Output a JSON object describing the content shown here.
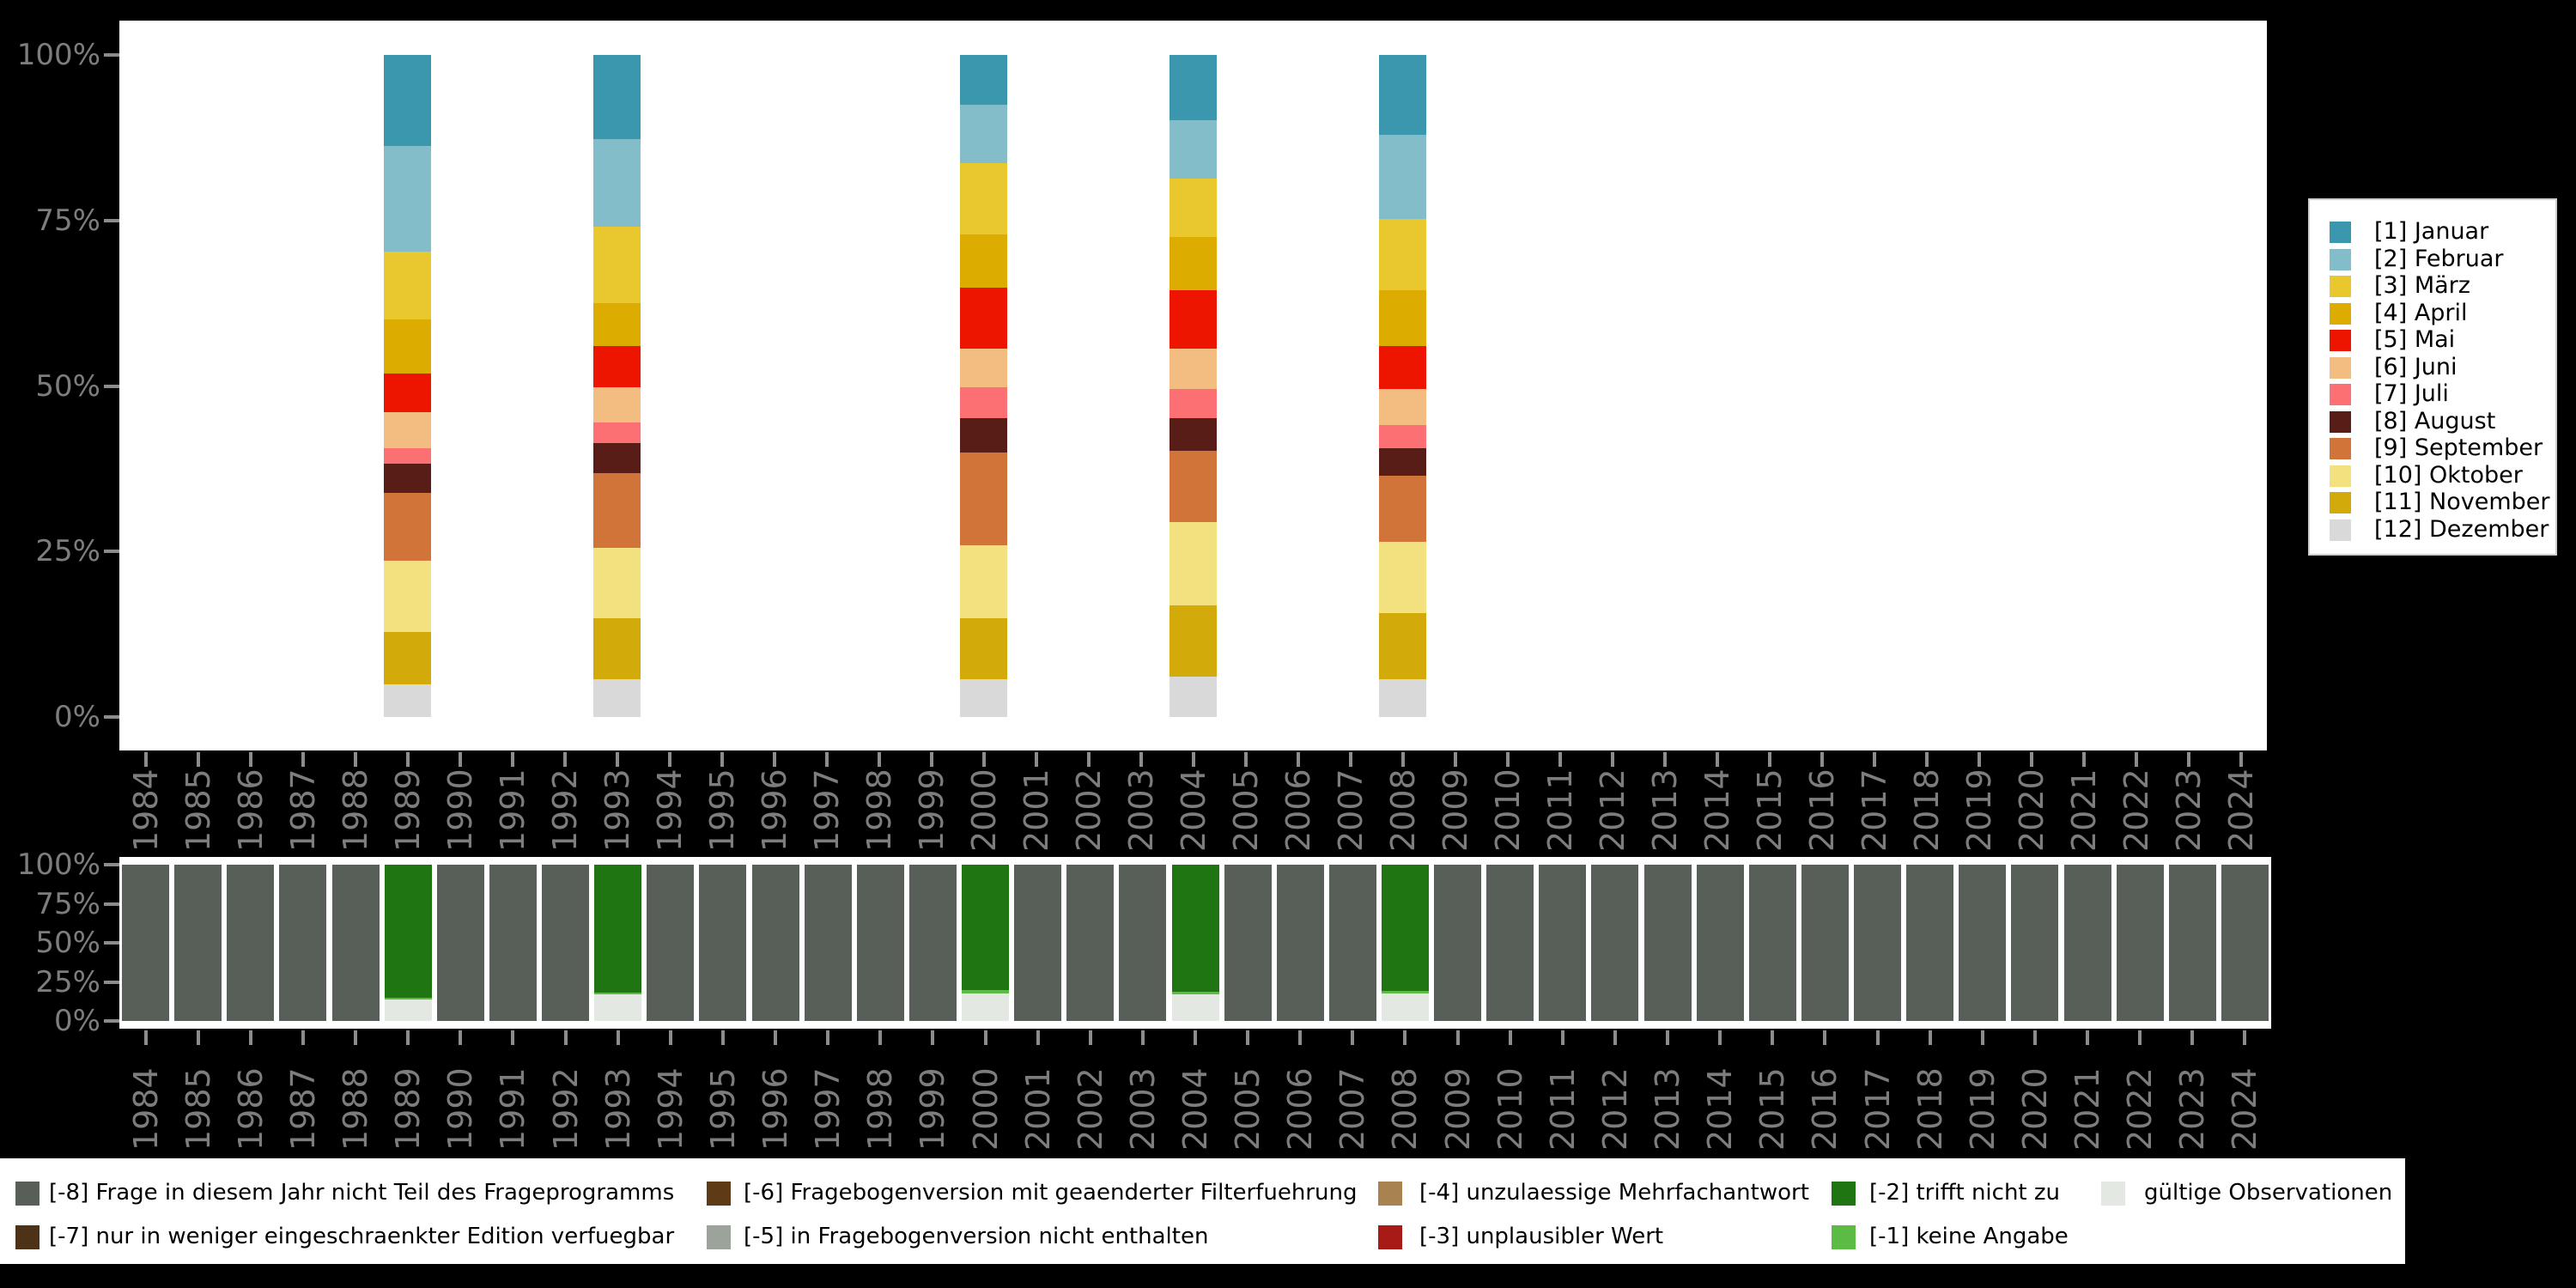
{
  "background_color": "#000000",
  "axis_text_color": "#7d7d7d",
  "tick_color": "#8c8c8c",
  "axes": {
    "y_tick_labels": [
      "100%",
      "75%",
      "50%",
      "25%",
      "0%"
    ],
    "years": [
      "1984",
      "1985",
      "1986",
      "1987",
      "1988",
      "1989",
      "1990",
      "1991",
      "1992",
      "1993",
      "1994",
      "1995",
      "1996",
      "1997",
      "1998",
      "1999",
      "2000",
      "2001",
      "2002",
      "2003",
      "2004",
      "2005",
      "2006",
      "2007",
      "2008",
      "2009",
      "2010",
      "2011",
      "2012",
      "2013",
      "2014",
      "2015",
      "2016",
      "2017",
      "2018",
      "2019",
      "2020",
      "2021",
      "2022",
      "2023",
      "2024"
    ]
  },
  "month_legend": {
    "items": [
      {
        "label": "[1] Januar",
        "color": "#3a97ae"
      },
      {
        "label": "[2] Februar",
        "color": "#82bdc9"
      },
      {
        "label": "[3] März",
        "color": "#e9c72f"
      },
      {
        "label": "[4] April",
        "color": "#dcac00"
      },
      {
        "label": "[5] Mai",
        "color": "#ee1500"
      },
      {
        "label": "[6] Juni",
        "color": "#f3bd82"
      },
      {
        "label": "[7] Juli",
        "color": "#fc6f72"
      },
      {
        "label": "[8] August",
        "color": "#581d17"
      },
      {
        "label": "[9] September",
        "color": "#d1743a"
      },
      {
        "label": "[10] Oktober",
        "color": "#f3e180"
      },
      {
        "label": "[11] November",
        "color": "#d2ab0a"
      },
      {
        "label": "[12] Dezember",
        "color": "#d9d9d9"
      }
    ]
  },
  "missing_legend": {
    "items": [
      {
        "col": 0,
        "row": 0,
        "label": "[-8] Frage in diesem Jahr nicht Teil des Frageprogramms",
        "color": "#575f58"
      },
      {
        "col": 0,
        "row": 1,
        "label": "[-7] nur in weniger eingeschraenkter Edition verfuegbar",
        "color": "#4e3218"
      },
      {
        "col": 1,
        "row": 0,
        "label": "[-6] Fragebogenversion mit geaenderter Filterfuehrung",
        "color": "#5f3a16"
      },
      {
        "col": 1,
        "row": 1,
        "label": "[-5] in Fragebogenversion nicht enthalten",
        "color": "#9ca39a"
      },
      {
        "col": 2,
        "row": 0,
        "label": "[-4] unzulaessige Mehrfachantwort",
        "color": "#a8824f"
      },
      {
        "col": 2,
        "row": 1,
        "label": "[-3] unplausibler Wert",
        "color": "#a81a15"
      },
      {
        "col": 3,
        "row": 0,
        "label": "[-2] trifft nicht zu",
        "color": "#1f7511"
      },
      {
        "col": 3,
        "row": 1,
        "label": "[-1] keine Angabe",
        "color": "#5cbb45"
      },
      {
        "col": 4,
        "row": 0,
        "label": "gültige Observationen",
        "color": "#e4e8e2"
      }
    ]
  },
  "chart_data": [
    {
      "type": "bar",
      "stacked": true,
      "title": "",
      "xlabel": "",
      "ylabel": "",
      "ylim": [
        0,
        100
      ],
      "grid": false,
      "y_tick_labels": [
        "0%",
        "25%",
        "50%",
        "75%",
        "100%"
      ],
      "categories": [
        1984,
        1985,
        1986,
        1987,
        1988,
        1989,
        1990,
        1991,
        1992,
        1993,
        1994,
        1995,
        1996,
        1997,
        1998,
        1999,
        2000,
        2001,
        2002,
        2003,
        2004,
        2005,
        2006,
        2007,
        2008,
        2009,
        2010,
        2011,
        2012,
        2013,
        2014,
        2015,
        2016,
        2017,
        2018,
        2019,
        2020,
        2021,
        2022,
        2023,
        2024
      ],
      "years_with_data": [
        "1989",
        "1993",
        "2000",
        "2004",
        "2008"
      ],
      "stack_order_bottom_to_top": [
        "[12] Dezember",
        "[11] November",
        "[10] Oktober",
        "[9] September",
        "[8] August",
        "[7] Juli",
        "[6] Juni",
        "[5] Mai",
        "[4] April",
        "[3] März",
        "[2] Februar",
        "[1] Januar"
      ],
      "series": [
        {
          "name": "[1] Januar",
          "color": "#3a97ae",
          "values_by_year": {
            "1989": 13.8,
            "1993": 12.7,
            "2000": 7.5,
            "2004": 9.8,
            "2008": 12.1
          }
        },
        {
          "name": "[2] Februar",
          "color": "#82bdc9",
          "values_by_year": {
            "1989": 15.9,
            "1993": 13.3,
            "2000": 8.9,
            "2004": 8.9,
            "2008": 12.7
          }
        },
        {
          "name": "[3] März",
          "color": "#e9c72f",
          "values_by_year": {
            "1989": 10.2,
            "1993": 11.5,
            "2000": 10.7,
            "2004": 8.8,
            "2008": 10.8
          }
        },
        {
          "name": "[4] April",
          "color": "#dcac00",
          "values_by_year": {
            "1989": 8.2,
            "1993": 6.5,
            "2000": 8.1,
            "2004": 8.1,
            "2008": 8.4
          }
        },
        {
          "name": "[5] Mai",
          "color": "#ee1500",
          "values_by_year": {
            "1989": 5.9,
            "1993": 6.2,
            "2000": 9.2,
            "2004": 8.8,
            "2008": 6.5
          }
        },
        {
          "name": "[6] Juni",
          "color": "#f3bd82",
          "values_by_year": {
            "1989": 5.4,
            "1993": 5.3,
            "2000": 5.8,
            "2004": 6.1,
            "2008": 5.4
          }
        },
        {
          "name": "[7] Juli",
          "color": "#fc6f72",
          "values_by_year": {
            "1989": 2.3,
            "1993": 3.1,
            "2000": 4.6,
            "2004": 4.3,
            "2008": 3.5
          }
        },
        {
          "name": "[8] August",
          "color": "#581d17",
          "values_by_year": {
            "1989": 4.5,
            "1993": 4.6,
            "2000": 5.3,
            "2004": 5.0,
            "2008": 4.2
          }
        },
        {
          "name": "[9] September",
          "color": "#d1743a",
          "values_by_year": {
            "1989": 10.2,
            "1993": 11.2,
            "2000": 13.9,
            "2004": 10.7,
            "2008": 10.0
          }
        },
        {
          "name": "[10] Oktober",
          "color": "#f3e180",
          "values_by_year": {
            "1989": 10.8,
            "1993": 10.7,
            "2000": 11.1,
            "2004": 12.7,
            "2008": 10.7
          }
        },
        {
          "name": "[11] November",
          "color": "#d2ab0a",
          "values_by_year": {
            "1989": 7.9,
            "1993": 9.2,
            "2000": 9.2,
            "2004": 10.7,
            "2008": 10.0
          }
        },
        {
          "name": "[12] Dezember",
          "color": "#d9d9d9",
          "values_by_year": {
            "1989": 4.9,
            "1993": 5.7,
            "2000": 5.7,
            "2004": 6.1,
            "2008": 5.7
          }
        }
      ]
    },
    {
      "type": "bar",
      "stacked": true,
      "title": "",
      "xlabel": "",
      "ylabel": "",
      "ylim": [
        0,
        100
      ],
      "grid": false,
      "y_tick_labels": [
        "0%",
        "25%",
        "50%",
        "75%",
        "100%"
      ],
      "categories": [
        1984,
        1985,
        1986,
        1987,
        1988,
        1989,
        1990,
        1991,
        1992,
        1993,
        1994,
        1995,
        1996,
        1997,
        1998,
        1999,
        2000,
        2001,
        2002,
        2003,
        2004,
        2005,
        2006,
        2007,
        2008,
        2009,
        2010,
        2011,
        2012,
        2013,
        2014,
        2015,
        2016,
        2017,
        2018,
        2019,
        2020,
        2021,
        2022,
        2023,
        2024
      ],
      "default_full_category": {
        "name": "[-8] Frage in diesem Jahr nicht Teil des Frageprogramms",
        "color": "#575f58",
        "value": 100
      },
      "stack_order_bottom_to_top": [
        "gültige Observationen",
        "[-1] keine Angabe",
        "[-2] trifft nicht zu"
      ],
      "series": [
        {
          "name": "gültige Observationen",
          "color": "#e4e8e2",
          "values_by_year": {
            "1989": 13.8,
            "1993": 17.0,
            "2000": 17.8,
            "2004": 17.0,
            "2008": 17.6
          }
        },
        {
          "name": "[-1] keine Angabe",
          "color": "#5cbb45",
          "values_by_year": {
            "1989": 1.2,
            "1993": 1.2,
            "2000": 2.0,
            "2004": 1.6,
            "2008": 1.6
          }
        },
        {
          "name": "[-2] trifft nicht zu",
          "color": "#1f7511",
          "values_by_year": {
            "1989": 85.0,
            "1993": 81.8,
            "2000": 80.2,
            "2004": 81.4,
            "2008": 80.8
          }
        }
      ]
    }
  ]
}
